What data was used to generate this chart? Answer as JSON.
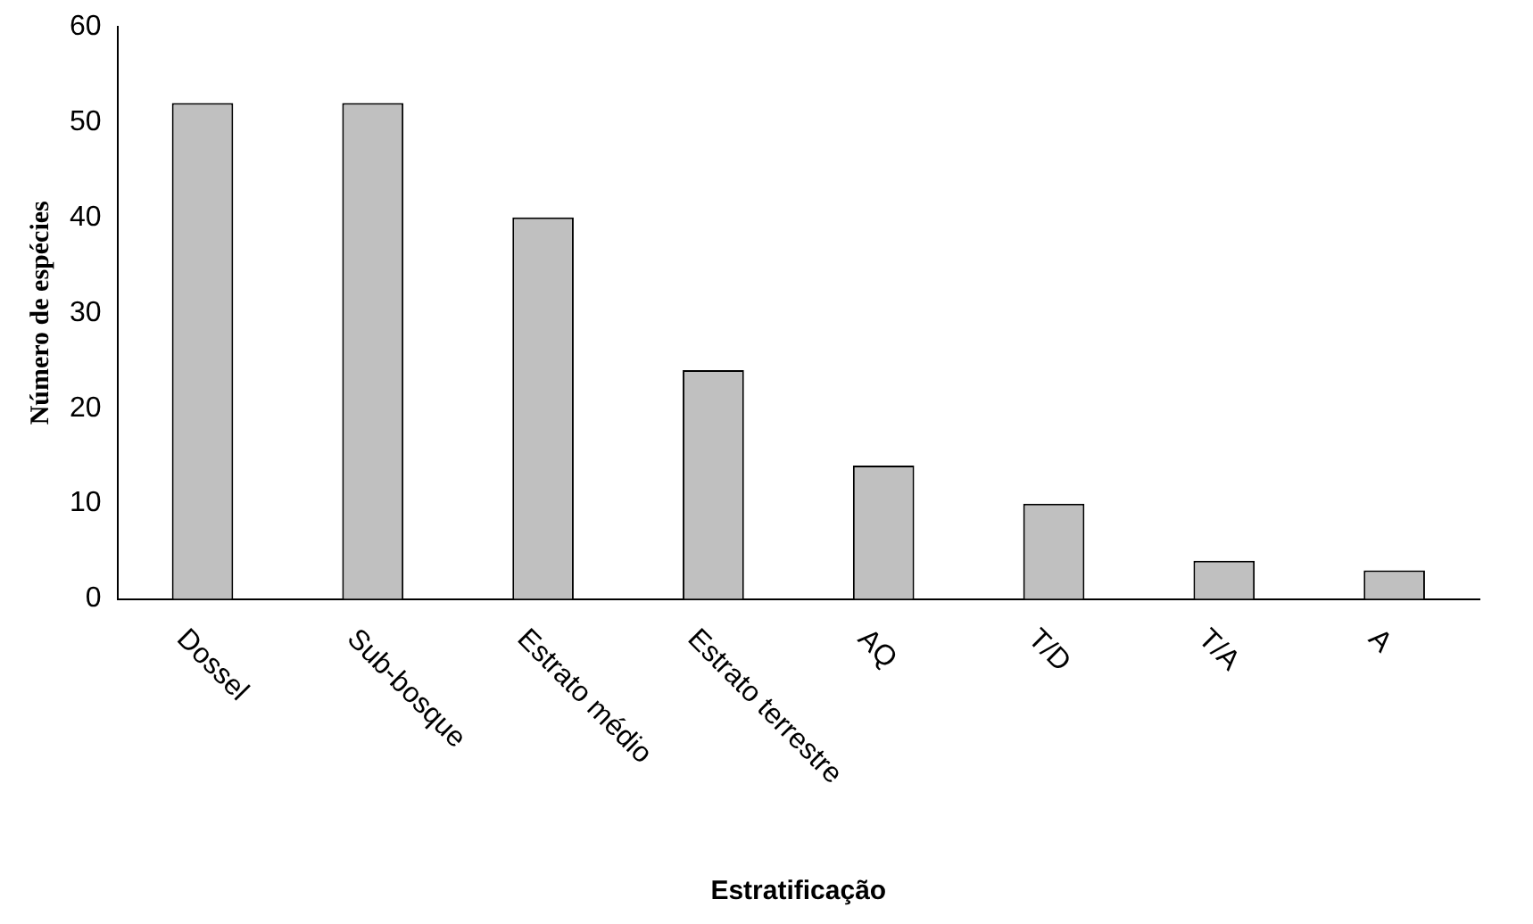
{
  "chart_data": {
    "type": "bar",
    "xlabel": "Estratificação",
    "ylabel": "Número de espécies",
    "categories": [
      "Dossel",
      "Sub-bosque",
      "Estrato médio",
      "Estrato terrestre",
      "AQ",
      "T/D",
      "T/A",
      "A"
    ],
    "values": [
      52,
      52,
      40,
      24,
      14,
      10,
      4,
      3
    ],
    "color": "#c0c0c0",
    "ylim": [
      0,
      60
    ],
    "yticks": [
      0,
      10,
      20,
      30,
      40,
      50,
      60
    ],
    "grid": false,
    "legend": false
  }
}
